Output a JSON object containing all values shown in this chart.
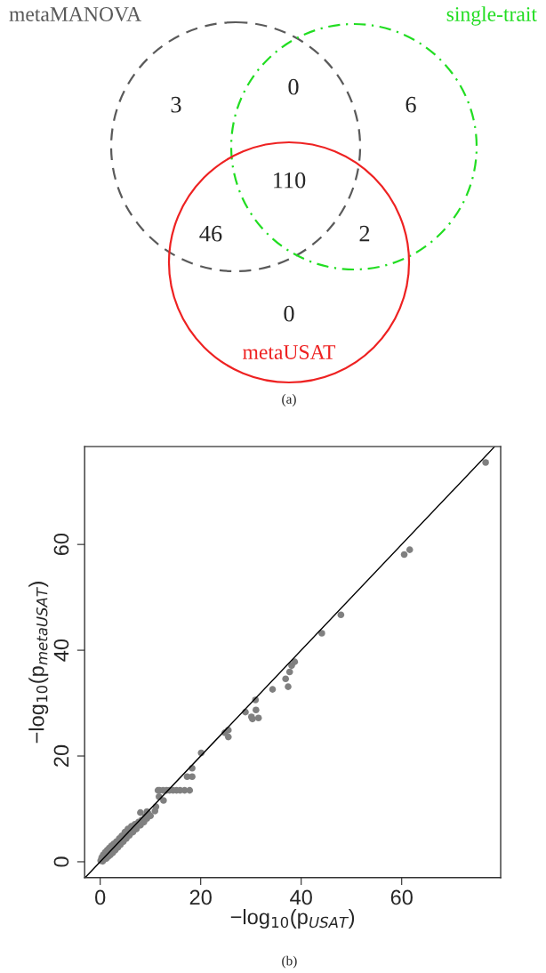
{
  "chart_data": [
    {
      "type": "other",
      "categories": [
        "metaMANOVA",
        "single-trait",
        "metaUSAT"
      ],
      "colors": [
        "#5a5a5a",
        "#22dd22",
        "#ee2222"
      ],
      "annotations": [
        "3",
        "0",
        "6",
        "46",
        "110",
        "2",
        "0",
        "(a)"
      ]
    },
    {
      "type": "scatter",
      "xlabel": "−log$_{10}$(p$_{USAT}$)",
      "ylabel": "−log$_{10}$(p$_{metaUSAT}$)",
      "xlim": [
        -3.1,
        79.7
      ],
      "ylim": [
        -3.0,
        78.5
      ],
      "xticks": [
        0,
        20,
        40,
        60
      ],
      "yticks": [
        0,
        20,
        40,
        60
      ],
      "grid": false,
      "series": [
        {
          "type": "scatter",
          "color": "#808080",
          "marker": "circle",
          "x": [
            0.1,
            0.3,
            0.5,
            0.6,
            1.0,
            1.2,
            1.4,
            1.6,
            1.8,
            2.0,
            2.2,
            2.5,
            2.7,
            3.0,
            3.2,
            3.5,
            3.8,
            4.0,
            4.3,
            4.6,
            4.9,
            5.2,
            5.5,
            5.8,
            6.2,
            6.5,
            6.9,
            7.2,
            7.6,
            8.0,
            8.3,
            8.7,
            9.0,
            9.3,
            9.6,
            10.0,
            8.0,
            9.3,
            10.9,
            11.1,
            11.7,
            12.6,
            11.5,
            11.8,
            12.5,
            13.2,
            13.8,
            14.5,
            15.2,
            15.9,
            16.8,
            17.8,
            17.3,
            18.3,
            18.3,
            20.1,
            24.8,
            25.5,
            25.5,
            28.9,
            30.1,
            30.3,
            31.5,
            31.0,
            30.9,
            34.3,
            37.4,
            36.9,
            37.7,
            38.1,
            38.7,
            44.1,
            47.9,
            60.5,
            61.6,
            76.7
          ],
          "values": [
            0.2,
            0.8,
            0.1,
            1.3,
            1.8,
            0.6,
            2.2,
            1.0,
            2.6,
            1.3,
            3.0,
            1.7,
            3.4,
            2.2,
            3.8,
            2.7,
            4.4,
            3.2,
            4.9,
            3.8,
            5.6,
            4.4,
            6.2,
            5.0,
            6.7,
            5.6,
            7.1,
            6.2,
            7.5,
            6.9,
            7.9,
            7.5,
            8.6,
            8.2,
            9.1,
            8.7,
            9.3,
            9.5,
            9.6,
            10.4,
            12.3,
            11.6,
            13.5,
            13.5,
            13.5,
            13.5,
            13.5,
            13.5,
            13.5,
            13.5,
            13.5,
            13.5,
            16.1,
            16.1,
            17.7,
            20.6,
            24.4,
            24.9,
            23.6,
            28.3,
            27.4,
            27.0,
            27.2,
            28.7,
            30.6,
            32.6,
            33.1,
            34.6,
            35.9,
            37.1,
            37.8,
            43.2,
            46.7,
            58.1,
            59.0,
            75.5
          ]
        },
        {
          "type": "line",
          "color": "#000000",
          "line_style": "solid",
          "marker": "none",
          "x": [
            -3.0,
            78.5
          ],
          "values": [
            -3.0,
            78.5
          ]
        }
      ],
      "annotations": [
        "(b)"
      ]
    }
  ]
}
